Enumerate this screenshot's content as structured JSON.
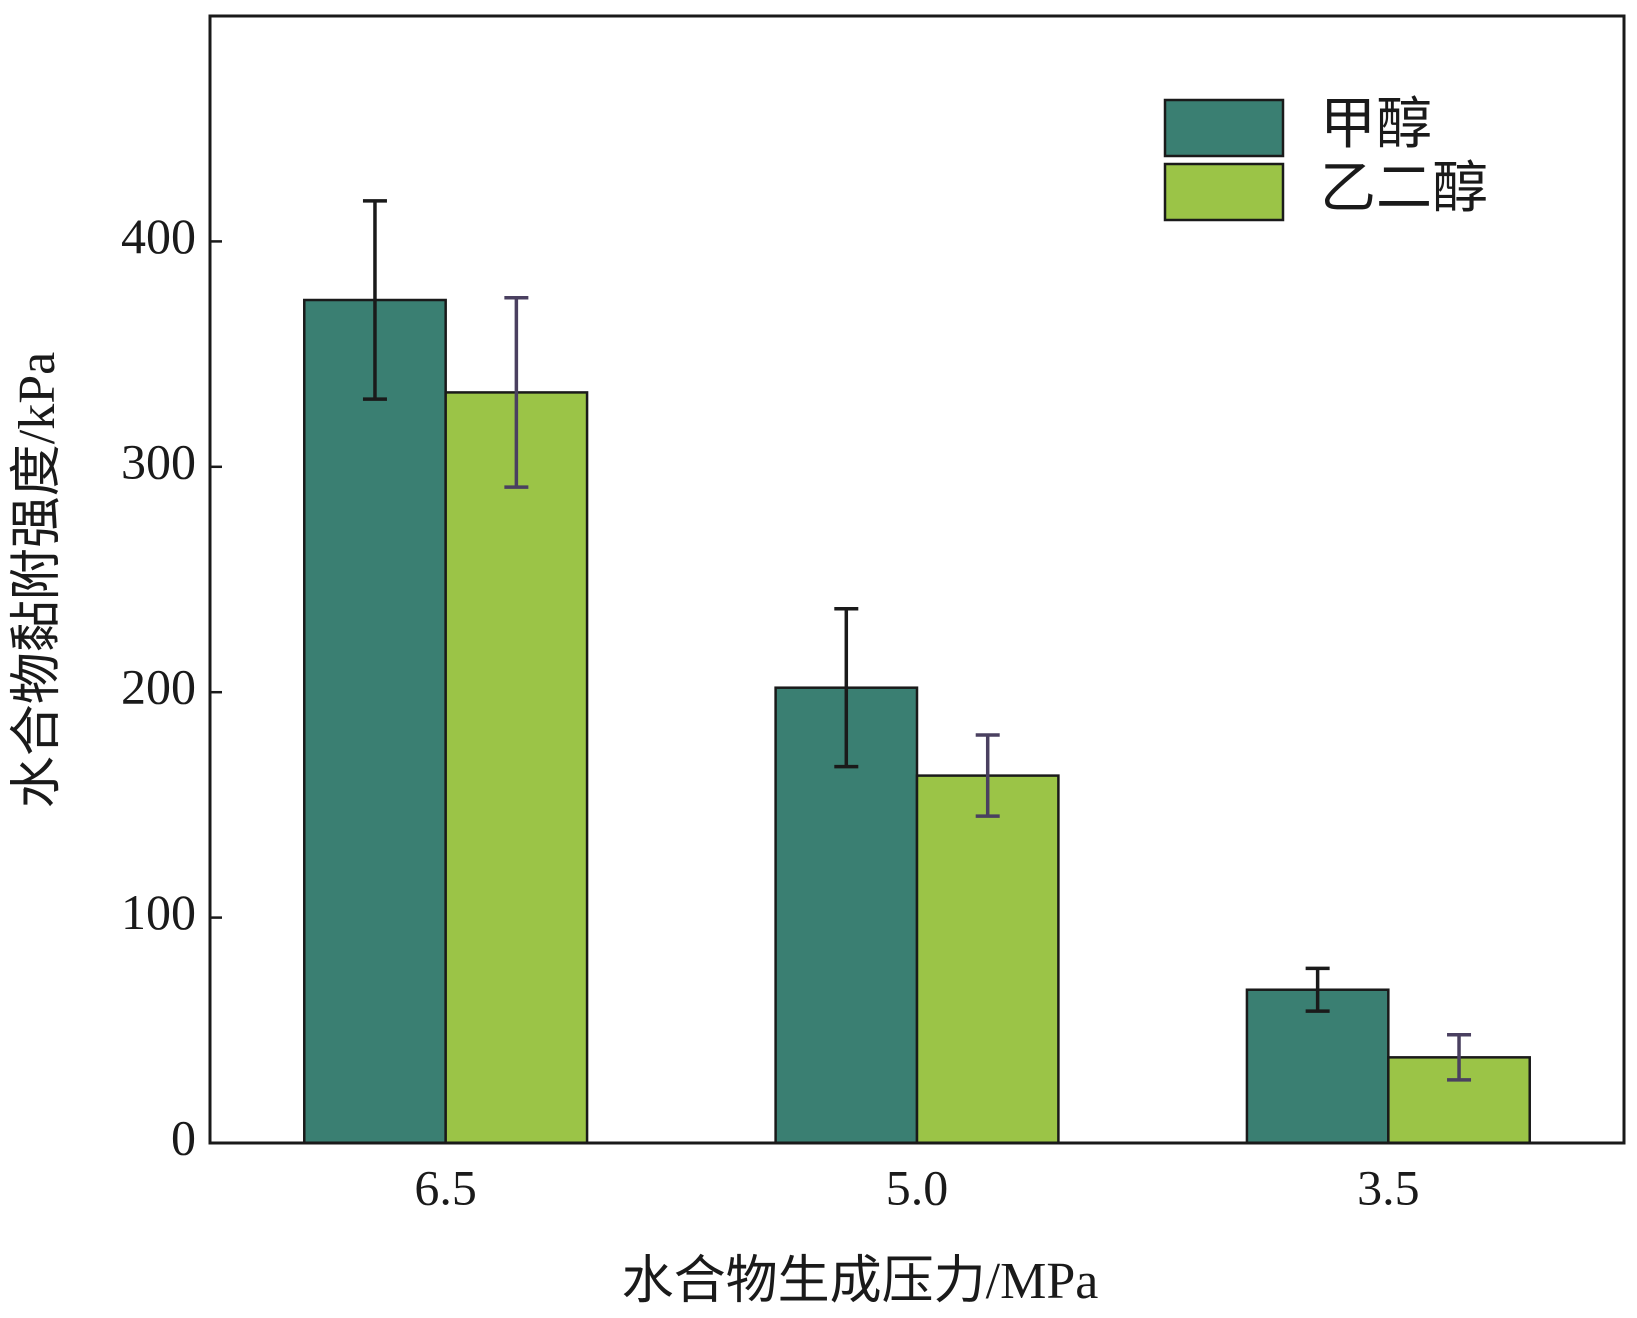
{
  "chart_data": {
    "type": "bar",
    "x_label": "水合物生成压力/MPa",
    "y_label": "水合物黏附强度/kPa",
    "categories": [
      "6.5",
      "5.0",
      "3.5"
    ],
    "series": [
      {
        "name": "甲醇",
        "color": "#3a7f72",
        "error_color": "#1a1a1a",
        "values": [
          374,
          202,
          68
        ],
        "errors": [
          44,
          35,
          9.5
        ]
      },
      {
        "name": "乙二醇",
        "color": "#9bc447",
        "error_color": "#4a4060",
        "values": [
          333,
          163,
          38
        ],
        "errors": [
          42,
          18,
          10
        ]
      }
    ],
    "ylim": [
      0,
      500
    ],
    "yticks": [
      0,
      100,
      200,
      300,
      400
    ],
    "legend": "upper right"
  }
}
